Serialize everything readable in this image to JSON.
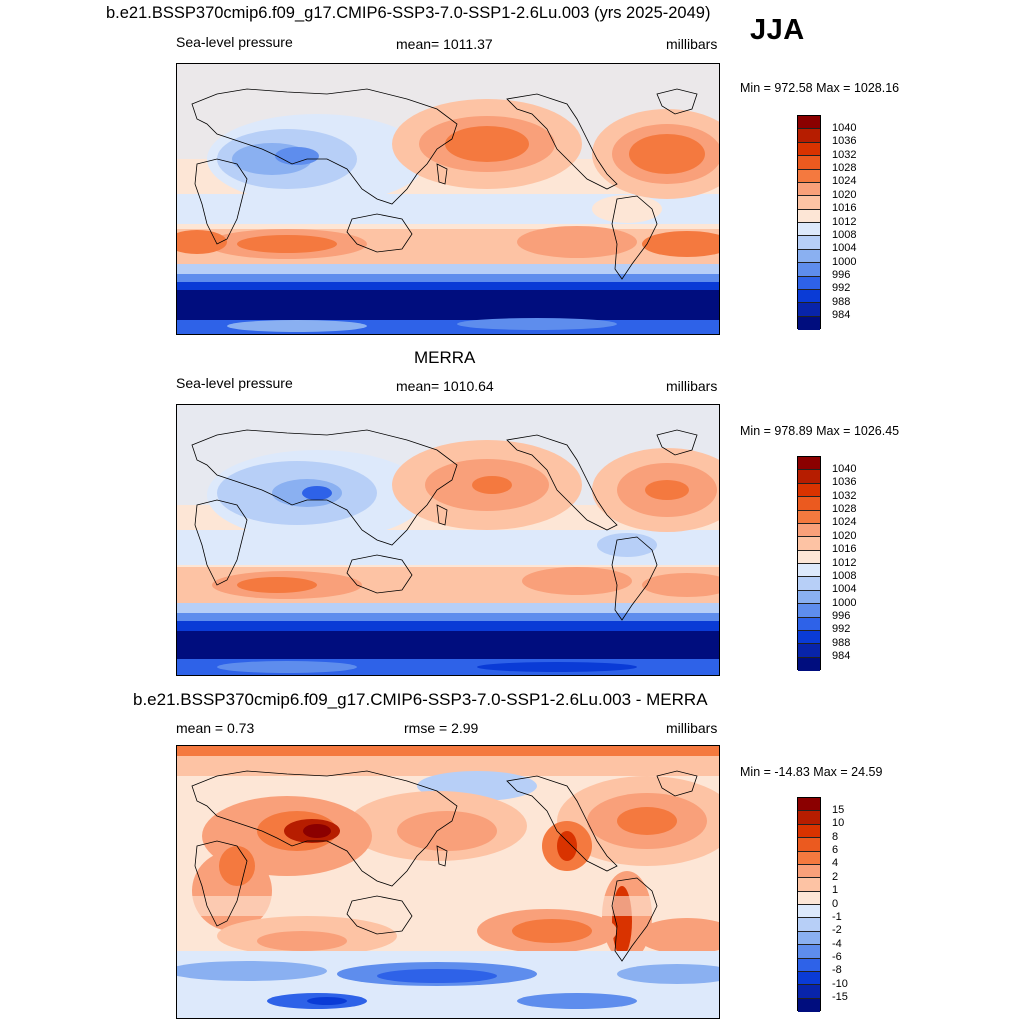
{
  "season": "JJA",
  "panels": [
    {
      "id": "model",
      "title": "b.e21.BSSP370cmip6.f09_g17.CMIP6-SSP3-7.0-SSP1-2.6Lu.003 (yrs 2025-2049)",
      "left_label": "Sea-level pressure",
      "center_label": "mean= 1011.37",
      "right_label": "millibars",
      "minmax": "Min = 972.58 Max = 1028.16"
    },
    {
      "id": "obs",
      "title": "MERRA",
      "left_label": "Sea-level pressure",
      "center_label": "mean= 1010.64",
      "right_label": "millibars",
      "minmax": "Min = 978.89 Max = 1026.45"
    },
    {
      "id": "diff",
      "title": "b.e21.BSSP370cmip6.f09_g17.CMIP6-SSP3-7.0-SSP1-2.6Lu.003 - MERRA",
      "left_label": "mean =   0.73",
      "center_label": "rmse =   2.99",
      "right_label": "millibars",
      "minmax": "Min = -14.83 Max =  24.59"
    }
  ],
  "colorbars": {
    "slp": {
      "labels": [
        "1040",
        "1036",
        "1032",
        "1028",
        "1024",
        "1020",
        "1016",
        "1012",
        "1008",
        "1004",
        "1000",
        "996",
        "992",
        "988",
        "984"
      ],
      "colors": [
        "#8b0000",
        "#b61d00",
        "#d93300",
        "#eb5a1f",
        "#f4793f",
        "#f9a07a",
        "#fdc3a4",
        "#fde6d6",
        "#dde9fb",
        "#b7cff7",
        "#8ab0f1",
        "#5e8ded",
        "#2e62e8",
        "#0a3bd6",
        "#0824aa",
        "#000d7e"
      ]
    },
    "diff": {
      "labels": [
        "15",
        "10",
        "8",
        "6",
        "4",
        "2",
        "1",
        "0",
        "-1",
        "-2",
        "-4",
        "-6",
        "-8",
        "-10",
        "-15"
      ],
      "colors": [
        "#8b0000",
        "#b61d00",
        "#d93300",
        "#eb5a1f",
        "#f4793f",
        "#f9a07a",
        "#fdc3a4",
        "#fde6d6",
        "#dde9fb",
        "#b7cff7",
        "#8ab0f1",
        "#5e8ded",
        "#2e62e8",
        "#0a3bd6",
        "#0824aa",
        "#000d7e"
      ]
    }
  }
}
